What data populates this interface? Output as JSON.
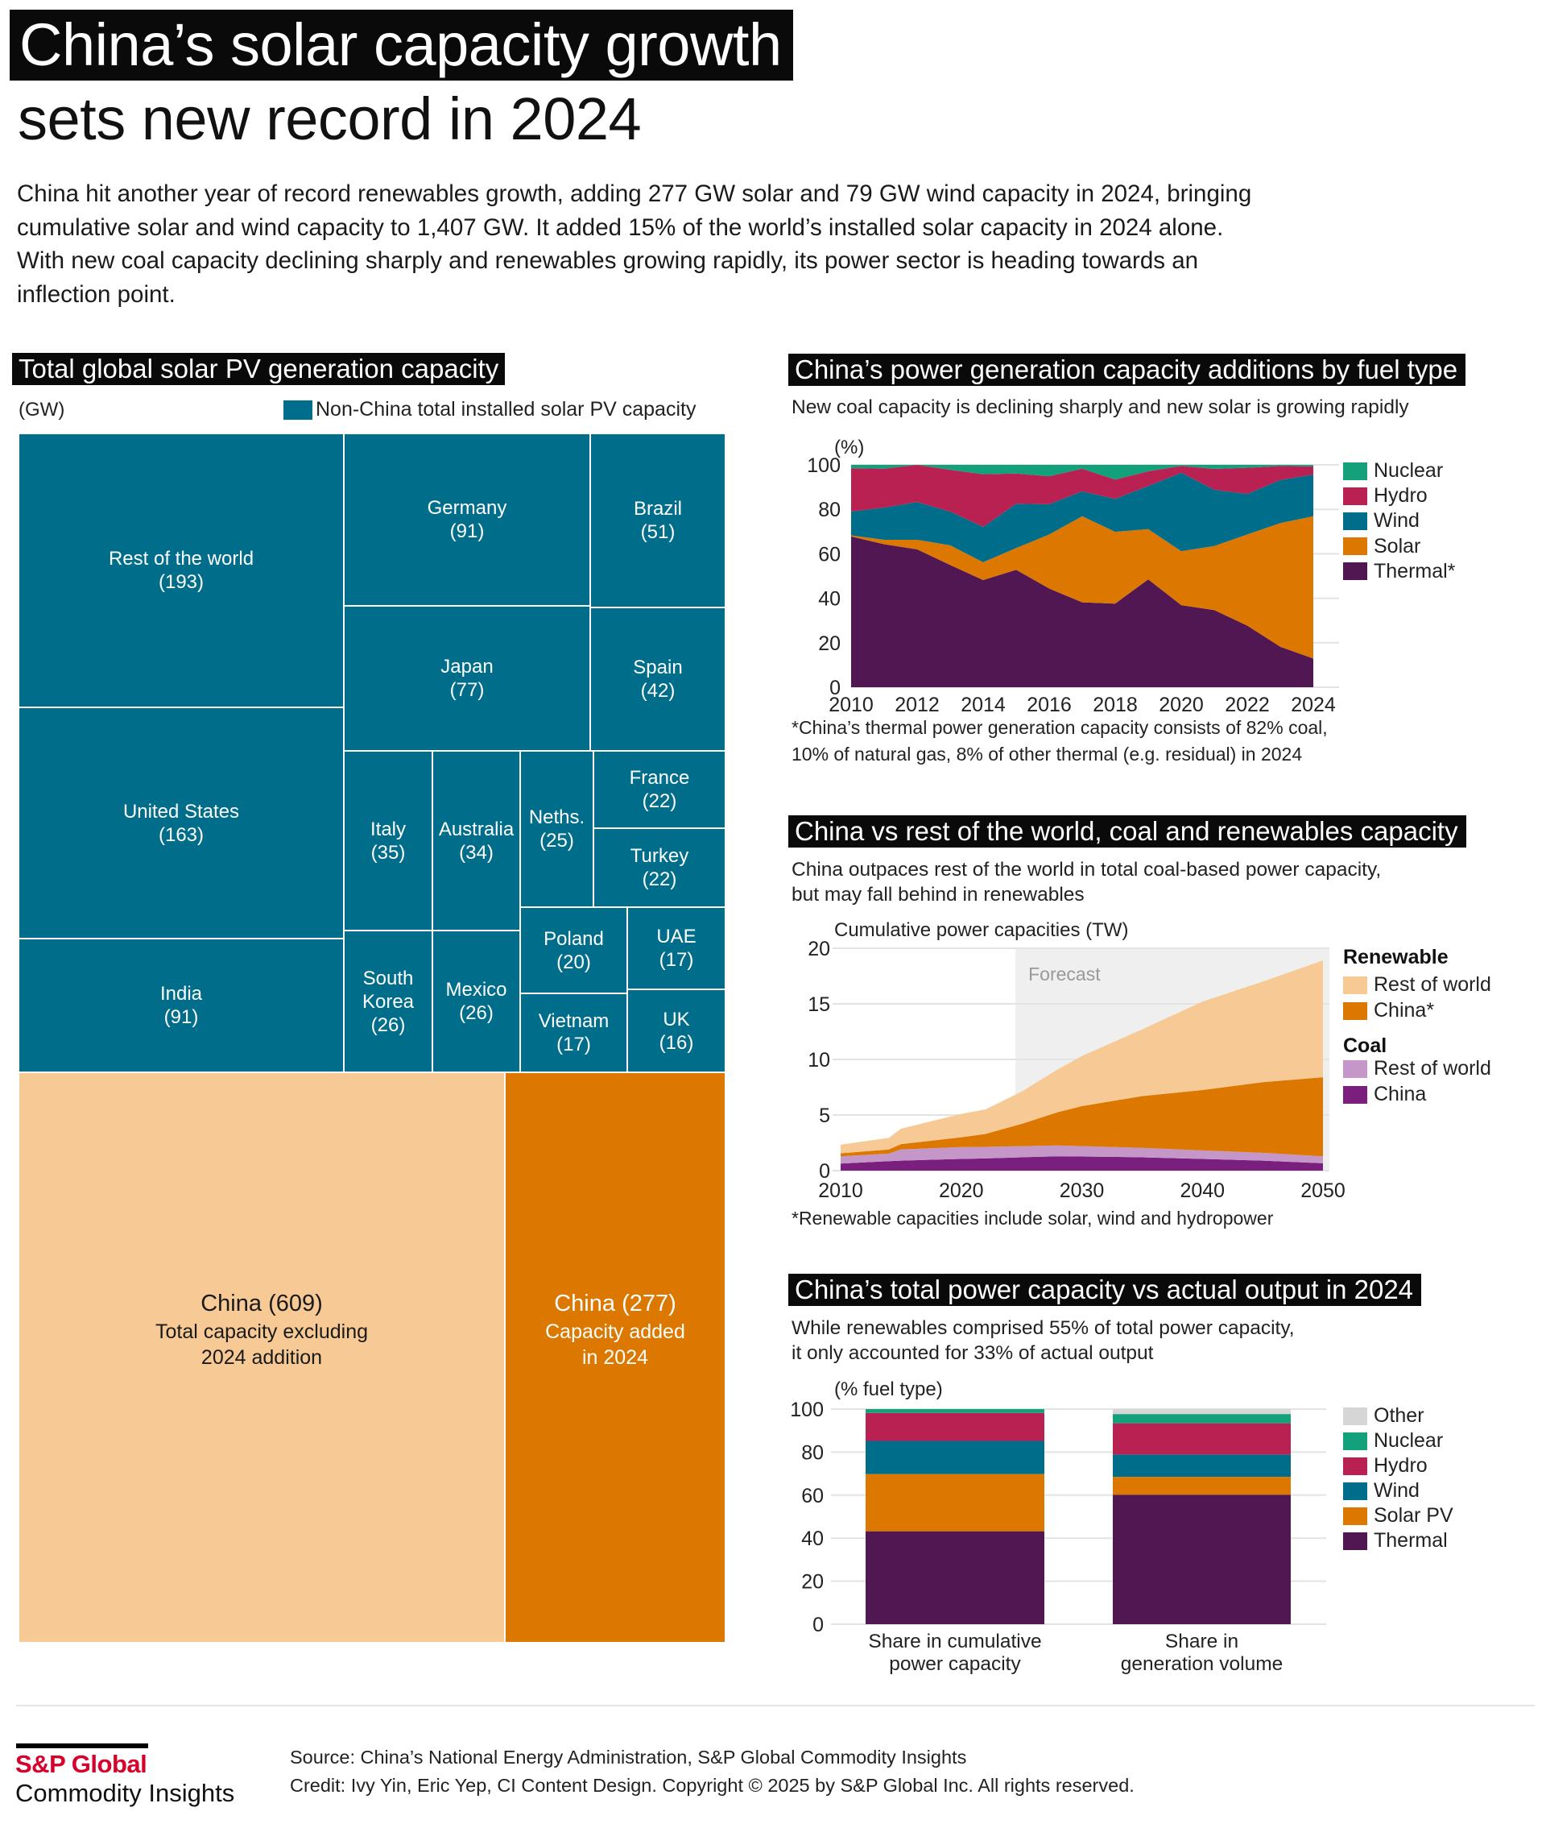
{
  "header": {
    "title_line1": "China’s solar capacity growth",
    "title_line2": "sets new record in 2024",
    "intro": "China hit another year of record renewables growth, adding 277 GW solar and 79 GW wind capacity in 2024, bringing cumulative solar and wind capacity to 1,407 GW. It added 15% of the world’s installed solar capacity in 2024 alone. With new coal capacity declining sharply and renewables growing rapidly, its power sector is heading towards an inflection point."
  },
  "colors": {
    "non_china": "#006d8a",
    "china_total": "#f6c995",
    "china_added": "#dc7800",
    "nuclear": "#12a17a",
    "hydro": "#b82151",
    "wind": "#006d8a",
    "solar": "#dc7800",
    "thermal": "#501752",
    "other": "#d6d6d6",
    "ren_row": "#f6c995",
    "ren_china": "#dc7800",
    "coal_row": "#c597c8",
    "coal_china": "#7a1f7e",
    "forecast_bg": "#efefef",
    "brand_red": "#d6002a"
  },
  "chart_data": [
    {
      "id": "treemap",
      "type": "treemap",
      "title": "Total global solar PV generation capacity",
      "unit": "(GW)",
      "legend": "Non-China total installed solar PV capacity",
      "cells": [
        {
          "name": "Rest of the world",
          "value": 193,
          "group": "non_china"
        },
        {
          "name": "United States",
          "value": 163,
          "group": "non_china"
        },
        {
          "name": "India",
          "value": 91,
          "group": "non_china"
        },
        {
          "name": "Germany",
          "value": 91,
          "group": "non_china"
        },
        {
          "name": "Brazil",
          "value": 51,
          "group": "non_china"
        },
        {
          "name": "Japan",
          "value": 77,
          "group": "non_china"
        },
        {
          "name": "Spain",
          "value": 42,
          "group": "non_china"
        },
        {
          "name": "Italy",
          "value": 35,
          "group": "non_china"
        },
        {
          "name": "Australia",
          "value": 34,
          "group": "non_china"
        },
        {
          "name": "Neths.",
          "value": 25,
          "group": "non_china"
        },
        {
          "name": "France",
          "value": 22,
          "group": "non_china"
        },
        {
          "name": "Turkey",
          "value": 22,
          "group": "non_china"
        },
        {
          "name": "South Korea",
          "value": 26,
          "group": "non_china"
        },
        {
          "name": "Mexico",
          "value": 26,
          "group": "non_china"
        },
        {
          "name": "Poland",
          "value": 20,
          "group": "non_china"
        },
        {
          "name": "UAE",
          "value": 17,
          "group": "non_china"
        },
        {
          "name": "Vietnam",
          "value": 17,
          "group": "non_china"
        },
        {
          "name": "UK",
          "value": 16,
          "group": "non_china"
        },
        {
          "name": "China",
          "value": 609,
          "group": "china_total",
          "label": "China (609)",
          "sublabel": "Total capacity excluding 2024 addition"
        },
        {
          "name": "China",
          "value": 277,
          "group": "china_added",
          "label": "China (277)",
          "sublabel": "Capacity added in 2024"
        }
      ]
    },
    {
      "id": "additions",
      "type": "area",
      "stacked": true,
      "title": "China’s power generation capacity additions by fuel type",
      "subtitle": "New coal capacity is declining sharply and new solar is growing rapidly",
      "ylabel": "(%)",
      "ylim": [
        0,
        100
      ],
      "yticks": [
        0,
        20,
        40,
        60,
        80,
        100
      ],
      "xticks": [
        2010,
        2012,
        2014,
        2016,
        2018,
        2020,
        2022,
        2024
      ],
      "x": [
        2010,
        2011,
        2012,
        2013,
        2014,
        2015,
        2016,
        2017,
        2018,
        2019,
        2020,
        2021,
        2022,
        2023,
        2024
      ],
      "series": [
        {
          "name": "Thermal*",
          "key": "thermal",
          "values": [
            67.8,
            64.3,
            62.0,
            55.0,
            48.2,
            52.8,
            44.4,
            38.2,
            37.6,
            48.5,
            36.9,
            34.7,
            27.7,
            18.2,
            12.9
          ]
        },
        {
          "name": "Solar",
          "key": "solar",
          "values": [
            0.5,
            2.0,
            4.3,
            8.8,
            8.0,
            9.8,
            24.3,
            38.7,
            32.3,
            22.6,
            24.3,
            28.8,
            41.0,
            55.6,
            64.0
          ]
        },
        {
          "name": "Wind",
          "key": "wind",
          "values": [
            10.7,
            14.5,
            17.0,
            15.2,
            15.9,
            19.9,
            13.6,
            11.2,
            14.8,
            19.4,
            35.2,
            25.3,
            18.2,
            19.4,
            18.7
          ]
        },
        {
          "name": "Hydro",
          "key": "hydro",
          "values": [
            19.5,
            17.5,
            16.7,
            18.8,
            23.7,
            13.6,
            12.6,
            10.2,
            8.7,
            6.6,
            3.1,
            9.4,
            11.8,
            6.3,
            3.7
          ]
        },
        {
          "name": "Nuclear",
          "key": "nuclear",
          "values": [
            1.5,
            1.7,
            0.0,
            2.2,
            4.2,
            3.9,
            5.1,
            1.7,
            6.6,
            2.9,
            0.5,
            1.8,
            1.3,
            0.5,
            0.7
          ]
        }
      ],
      "legend_order": [
        "Nuclear",
        "Hydro",
        "Wind",
        "Solar",
        "Thermal*"
      ],
      "legend_position": "right",
      "footnote": [
        "*China’s thermal power generation capacity consists of 82% coal,",
        "10% of natural gas, 8% of other thermal (e.g. residual) in 2024"
      ]
    },
    {
      "id": "coal_renewables",
      "type": "area",
      "stacked": true,
      "title": "China vs rest of the world, coal and renewables capacity",
      "subtitle": [
        "China outpaces rest of the world in total coal-based power capacity,",
        "but may fall behind in renewables"
      ],
      "ylabel": "Cumulative power capacities (TW)",
      "ylim": [
        0,
        20
      ],
      "yticks": [
        0,
        5,
        10,
        15,
        20
      ],
      "xticks": [
        2010,
        2020,
        2030,
        2040,
        2050
      ],
      "xlim": [
        2010,
        2050
      ],
      "forecast_from": 2024.5,
      "forecast_label": "Forecast",
      "x": [
        2010,
        2014,
        2015,
        2020,
        2022,
        2025,
        2028,
        2030,
        2035,
        2040,
        2045,
        2050
      ],
      "series": [
        {
          "name": "China",
          "group": "Coal",
          "key": "coal_china",
          "values": [
            0.63,
            0.85,
            0.9,
            1.05,
            1.1,
            1.2,
            1.29,
            1.27,
            1.2,
            1.05,
            0.9,
            0.66
          ]
        },
        {
          "name": "Rest of world",
          "group": "Coal",
          "key": "coal_row",
          "values": [
            0.66,
            0.68,
            1.0,
            1.07,
            1.04,
            1.0,
            0.97,
            0.93,
            0.85,
            0.77,
            0.7,
            0.63
          ]
        },
        {
          "name": "China*",
          "group": "Renewable",
          "key": "ren_china",
          "values": [
            0.27,
            0.37,
            0.48,
            0.88,
            1.16,
            2.0,
            2.99,
            3.6,
            4.65,
            5.43,
            6.35,
            7.11
          ]
        },
        {
          "name": "Rest of world",
          "group": "Renewable",
          "key": "ren_row",
          "values": [
            0.78,
            1.04,
            1.39,
            2.1,
            2.2,
            2.9,
            3.85,
            4.5,
            6.0,
            7.95,
            9.05,
            10.5
          ]
        }
      ],
      "legend_groups": [
        {
          "heading": "Renewable",
          "items": [
            {
              "name": "Rest of world",
              "key": "ren_row"
            },
            {
              "name": "China*",
              "key": "ren_china"
            }
          ]
        },
        {
          "heading": "Coal",
          "items": [
            {
              "name": "Rest of world",
              "key": "coal_row"
            },
            {
              "name": "China",
              "key": "coal_china"
            }
          ]
        }
      ],
      "legend_position": "right",
      "footnote": "*Renewable capacities include solar, wind and hydropower"
    },
    {
      "id": "capacity_vs_output",
      "type": "bar",
      "stacked": true,
      "title": "China’s total power capacity vs actual output in 2024",
      "subtitle": [
        "While renewables comprised 55% of total power capacity,",
        "it only accounted for 33% of actual output"
      ],
      "ylabel": "(% fuel type)",
      "ylim": [
        0,
        100
      ],
      "yticks": [
        0,
        20,
        40,
        60,
        80,
        100
      ],
      "categories": [
        [
          "Share in cumulative",
          "power capacity"
        ],
        [
          "Share in",
          "generation volume"
        ]
      ],
      "series": [
        {
          "name": "Thermal",
          "key": "thermal",
          "values": [
            43.2,
            60.2
          ]
        },
        {
          "name": "Solar PV",
          "key": "solar",
          "values": [
            26.6,
            8.3
          ]
        },
        {
          "name": "Wind",
          "key": "wind",
          "values": [
            15.4,
            10.4
          ]
        },
        {
          "name": "Hydro",
          "key": "hydro",
          "values": [
            13.0,
            14.5
          ]
        },
        {
          "name": "Nuclear",
          "key": "nuclear",
          "values": [
            1.8,
            4.3
          ]
        },
        {
          "name": "Other",
          "key": "other",
          "values": [
            0.0,
            2.3
          ]
        }
      ],
      "legend_order": [
        "Other",
        "Nuclear",
        "Hydro",
        "Wind",
        "Solar PV",
        "Thermal"
      ],
      "legend_position": "right"
    }
  ],
  "footer": {
    "logo_top": "S&P Global",
    "logo_bottom": "Commodity Insights",
    "source": "Source: China’s National Energy Administration, S&P Global Commodity Insights",
    "credit": "Credit: Ivy Yin, Eric Yep, CI Content Design. Copyright © 2025 by S&P Global Inc.  All rights reserved."
  }
}
